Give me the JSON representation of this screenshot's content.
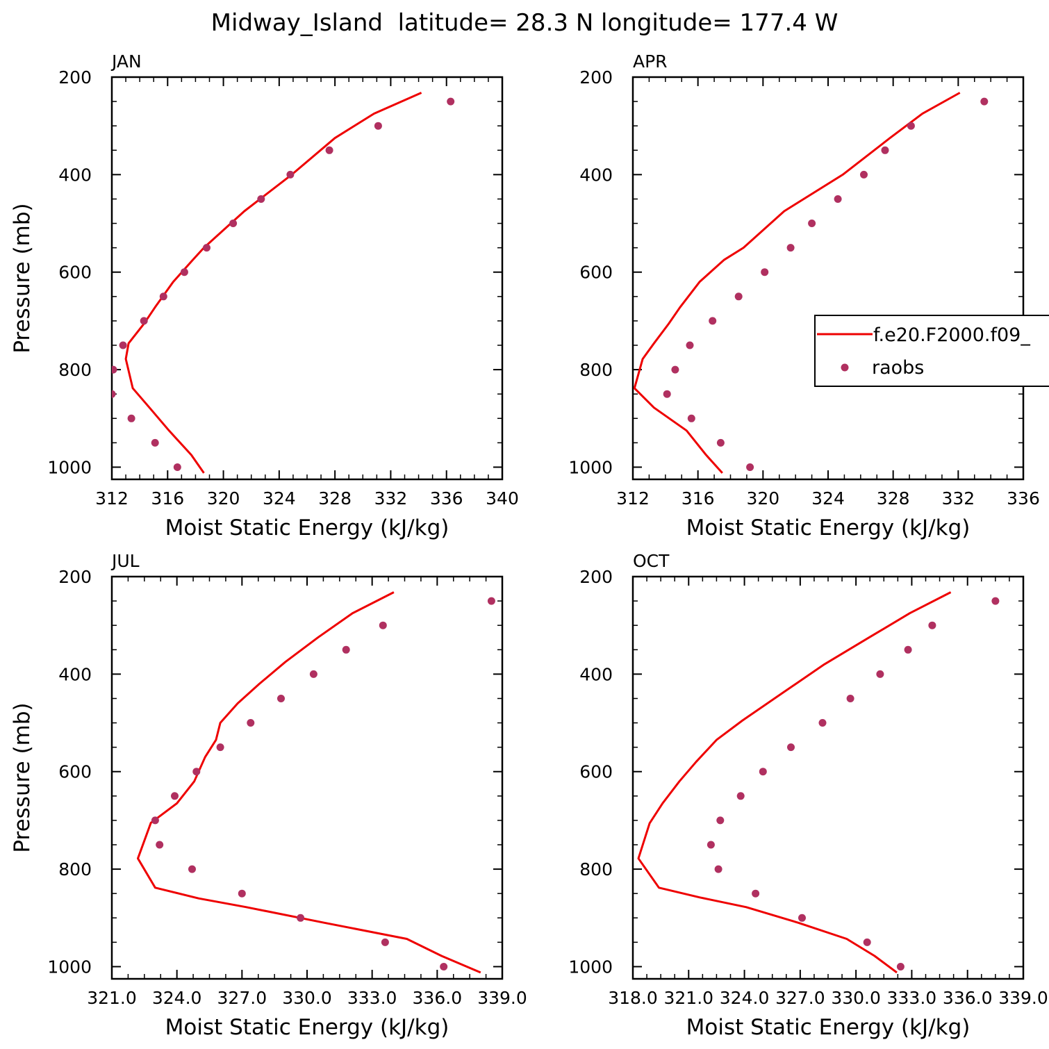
{
  "figure": {
    "title": "Midway_Island  latitude= 28.3 N longitude= 177.4 W"
  },
  "legend": {
    "model": "f.e20.F2000.f09_",
    "obs": "raobs",
    "placement": "right side of APR panel (clipped)"
  },
  "colors": {
    "model_line": "#ee0000",
    "obs_marker": "#b03060"
  },
  "chart_data": [
    {
      "type": "scatter",
      "title": "JAN",
      "xlabel": "Moist Static Energy (kJ/kg)",
      "ylabel": "Pressure (mb)",
      "xlim": [
        312,
        340
      ],
      "ylim": [
        200,
        1025
      ],
      "y_inverted": true,
      "xticks": [
        312,
        316,
        320,
        324,
        328,
        332,
        336,
        340
      ],
      "xtick_labels": [
        "312",
        "316",
        "320",
        "324",
        "328",
        "332",
        "336",
        "340"
      ],
      "yticks": [
        200,
        400,
        600,
        800,
        1000
      ],
      "ytick_labels": [
        "200",
        "400",
        "600",
        "800",
        "1000"
      ],
      "series": [
        {
          "name": "f.e20.F2000.f09_",
          "kind": "line",
          "points": [
            [
              334.2,
              232
            ],
            [
              330.8,
              275
            ],
            [
              328,
              325
            ],
            [
              324.9,
              400
            ],
            [
              321.5,
              475
            ],
            [
              318.6,
              550
            ],
            [
              317.8,
              575
            ],
            [
              316.4,
              620
            ],
            [
              315.1,
              672
            ],
            [
              314.3,
              706
            ],
            [
              313.2,
              746
            ],
            [
              313.0,
              778
            ],
            [
              313.5,
              838
            ],
            [
              314.7,
              878
            ],
            [
              316.1,
              925
            ],
            [
              317.7,
              975
            ],
            [
              318.6,
              1012
            ]
          ]
        },
        {
          "name": "raobs",
          "kind": "scatter",
          "points": [
            [
              336.3,
              250
            ],
            [
              331.1,
              300
            ],
            [
              327.6,
              350
            ],
            [
              324.8,
              400
            ],
            [
              322.7,
              450
            ],
            [
              320.7,
              500
            ],
            [
              318.8,
              550
            ],
            [
              317.2,
              600
            ],
            [
              315.7,
              650
            ],
            [
              314.3,
              700
            ],
            [
              312.8,
              750
            ],
            [
              312.1,
              800
            ],
            [
              312.0,
              850
            ],
            [
              313.4,
              900
            ],
            [
              315.1,
              950
            ],
            [
              316.7,
              1000
            ]
          ]
        }
      ]
    },
    {
      "type": "scatter",
      "title": "APR",
      "xlabel": "Moist Static Energy (kJ/kg)",
      "ylabel": "",
      "xlim": [
        312,
        336
      ],
      "ylim": [
        200,
        1025
      ],
      "y_inverted": true,
      "xticks": [
        312,
        316,
        320,
        324,
        328,
        332,
        336
      ],
      "xtick_labels": [
        "312",
        "316",
        "320",
        "324",
        "328",
        "332",
        "336"
      ],
      "yticks": [
        200,
        400,
        600,
        800,
        1000
      ],
      "ytick_labels": [
        "200",
        "400",
        "600",
        "800",
        "1000"
      ],
      "series": [
        {
          "name": "f.e20.F2000.f09_",
          "kind": "line",
          "points": [
            [
              332.1,
              232
            ],
            [
              329.8,
              275
            ],
            [
              327.8,
              325
            ],
            [
              324.9,
              400
            ],
            [
              321.3,
              475
            ],
            [
              318.8,
              550
            ],
            [
              317.6,
              575
            ],
            [
              316.1,
              620
            ],
            [
              314.9,
              672
            ],
            [
              314.2,
              706
            ],
            [
              313.3,
              746
            ],
            [
              312.6,
              778
            ],
            [
              312.1,
              838
            ],
            [
              313.3,
              878
            ],
            [
              315.3,
              925
            ],
            [
              316.5,
              975
            ],
            [
              317.5,
              1012
            ]
          ]
        },
        {
          "name": "raobs",
          "kind": "scatter",
          "points": [
            [
              333.6,
              250
            ],
            [
              329.1,
              300
            ],
            [
              327.5,
              350
            ],
            [
              326.2,
              400
            ],
            [
              324.6,
              450
            ],
            [
              323.0,
              500
            ],
            [
              321.7,
              550
            ],
            [
              320.1,
              600
            ],
            [
              318.5,
              650
            ],
            [
              316.9,
              700
            ],
            [
              315.5,
              750
            ],
            [
              314.6,
              800
            ],
            [
              314.1,
              850
            ],
            [
              315.6,
              900
            ],
            [
              317.4,
              950
            ],
            [
              319.2,
              1000
            ]
          ]
        }
      ]
    },
    {
      "type": "scatter",
      "title": "JUL",
      "xlabel": "Moist Static Energy (kJ/kg)",
      "ylabel": "Pressure (mb)",
      "xlim": [
        321,
        339
      ],
      "ylim": [
        200,
        1025
      ],
      "y_inverted": true,
      "xticks": [
        321,
        324,
        327,
        330,
        333,
        336,
        339
      ],
      "xtick_labels": [
        "321.0",
        "324.0",
        "327.0",
        "330.0",
        "333.0",
        "336.0",
        "339.0"
      ],
      "yticks": [
        200,
        400,
        600,
        800,
        1000
      ],
      "ytick_labels": [
        "200",
        "400",
        "600",
        "800",
        "1000"
      ],
      "series": [
        {
          "name": "f.e20.F2000.f09_",
          "kind": "line",
          "points": [
            [
              334.0,
              232
            ],
            [
              332.1,
              275
            ],
            [
              330.5,
              325
            ],
            [
              329.0,
              375
            ],
            [
              327.8,
              420
            ],
            [
              326.8,
              460
            ],
            [
              326.0,
              500
            ],
            [
              325.8,
              535
            ],
            [
              325.3,
              570
            ],
            [
              324.8,
              620
            ],
            [
              324.0,
              665
            ],
            [
              322.8,
              705
            ],
            [
              322.2,
              778
            ],
            [
              323.0,
              838
            ],
            [
              325.0,
              860
            ],
            [
              327.2,
              878
            ],
            [
              330.8,
              910
            ],
            [
              334.6,
              943
            ],
            [
              336.2,
              978
            ],
            [
              338.0,
              1012
            ]
          ]
        },
        {
          "name": "raobs",
          "kind": "scatter",
          "points": [
            [
              338.5,
              250
            ],
            [
              333.5,
              300
            ],
            [
              331.8,
              350
            ],
            [
              330.3,
              400
            ],
            [
              328.8,
              450
            ],
            [
              327.4,
              500
            ],
            [
              326.0,
              550
            ],
            [
              324.9,
              600
            ],
            [
              323.9,
              650
            ],
            [
              323.0,
              700
            ],
            [
              323.2,
              750
            ],
            [
              324.7,
              800
            ],
            [
              327.0,
              850
            ],
            [
              329.7,
              900
            ],
            [
              333.6,
              950
            ],
            [
              336.3,
              1000
            ]
          ]
        }
      ]
    },
    {
      "type": "scatter",
      "title": "OCT",
      "xlabel": "Moist Static Energy (kJ/kg)",
      "ylabel": "",
      "xlim": [
        318,
        339
      ],
      "ylim": [
        200,
        1025
      ],
      "y_inverted": true,
      "xticks": [
        318,
        321,
        324,
        327,
        330,
        333,
        336,
        339
      ],
      "xtick_labels": [
        "318.0",
        "321.0",
        "324.0",
        "327.0",
        "330.0",
        "333.0",
        "336.0",
        "339.0"
      ],
      "yticks": [
        200,
        400,
        600,
        800,
        1000
      ],
      "ytick_labels": [
        "200",
        "400",
        "600",
        "800",
        "1000"
      ],
      "series": [
        {
          "name": "f.e20.F2000.f09_",
          "kind": "line",
          "points": [
            [
              335.1,
              232
            ],
            [
              332.9,
              275
            ],
            [
              330.7,
              325
            ],
            [
              328.3,
              380
            ],
            [
              326.0,
              440
            ],
            [
              323.9,
              495
            ],
            [
              322.5,
              535
            ],
            [
              321.4,
              580
            ],
            [
              320.5,
              620
            ],
            [
              319.6,
              665
            ],
            [
              318.9,
              706
            ],
            [
              318.3,
              778
            ],
            [
              319.4,
              838
            ],
            [
              321.6,
              858
            ],
            [
              324.1,
              878
            ],
            [
              326.9,
              910
            ],
            [
              329.5,
              943
            ],
            [
              331.0,
              978
            ],
            [
              332.2,
              1012
            ]
          ]
        },
        {
          "name": "raobs",
          "kind": "scatter",
          "points": [
            [
              337.5,
              250
            ],
            [
              334.1,
              300
            ],
            [
              332.8,
              350
            ],
            [
              331.3,
              400
            ],
            [
              329.7,
              450
            ],
            [
              328.2,
              500
            ],
            [
              326.5,
              550
            ],
            [
              325.0,
              600
            ],
            [
              323.8,
              650
            ],
            [
              322.7,
              700
            ],
            [
              322.2,
              750
            ],
            [
              322.6,
              800
            ],
            [
              324.6,
              850
            ],
            [
              327.1,
              900
            ],
            [
              330.6,
              950
            ],
            [
              332.4,
              1000
            ]
          ]
        }
      ]
    }
  ]
}
